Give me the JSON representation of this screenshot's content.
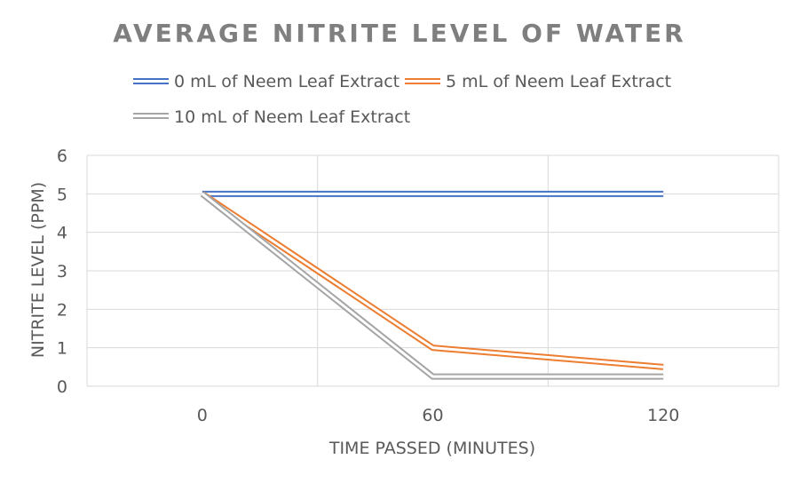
{
  "chart_data": {
    "type": "line",
    "title": "AVERAGE NITRITE LEVEL OF WATER",
    "xlabel": "TIME PASSED (MINUTES)",
    "ylabel": "NITRITE LEVEL (PPM)",
    "categories": [
      "0",
      "60",
      "120"
    ],
    "ylim": [
      0,
      6
    ],
    "yticks": [
      0,
      1,
      2,
      3,
      4,
      5,
      6
    ],
    "grid": true,
    "legend_position": "top",
    "series": [
      {
        "name": "0 mL of Neem Leaf Extract",
        "values": [
          5,
          5,
          5
        ],
        "color": "#4472c4"
      },
      {
        "name": "5 mL of Neem Leaf Extract",
        "values": [
          5,
          1.0,
          0.5
        ],
        "color": "#ed7d31"
      },
      {
        "name": "10 mL of Neem Leaf Extract",
        "values": [
          5,
          0.25,
          0.25
        ],
        "color": "#a5a5a5"
      }
    ]
  }
}
